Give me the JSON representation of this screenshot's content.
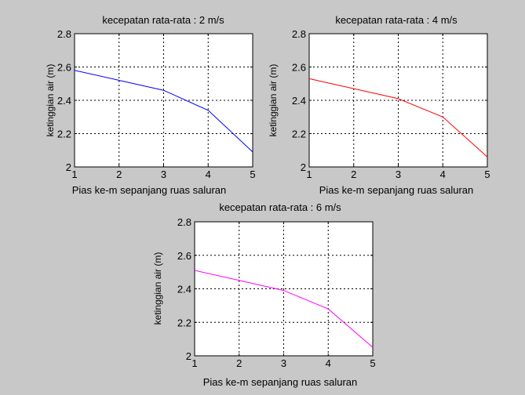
{
  "figure": {
    "background": "#c8c8c8"
  },
  "chart_data": [
    {
      "type": "line",
      "title": "kecepatan rata-rata : 2 m/s",
      "xlabel": "Pias ke-m sepanjang ruas saluran",
      "ylabel": "ketinggian air (m)",
      "xlim": [
        1,
        5
      ],
      "ylim": [
        2,
        2.8
      ],
      "xticks": [
        "1",
        "2",
        "3",
        "4",
        "5"
      ],
      "yticks": [
        "2",
        "2.2",
        "2.4",
        "2.6",
        "2.8"
      ],
      "grid": true,
      "x": [
        1,
        2,
        3,
        4,
        5
      ],
      "series": [
        {
          "color": "#0000ff",
          "values": [
            2.58,
            2.52,
            2.46,
            2.34,
            2.09
          ]
        }
      ]
    },
    {
      "type": "line",
      "title": "kecepatan rata-rata : 4 m/s",
      "xlabel": "Pias ke-m sepanjang ruas saluran",
      "ylabel": "ketinggian air (m)",
      "xlim": [
        1,
        5
      ],
      "ylim": [
        2,
        2.8
      ],
      "xticks": [
        "1",
        "2",
        "3",
        "4",
        "5"
      ],
      "yticks": [
        "2",
        "2.2",
        "2.4",
        "2.6",
        "2.8"
      ],
      "grid": true,
      "x": [
        1,
        2,
        3,
        4,
        5
      ],
      "series": [
        {
          "color": "#ff0000",
          "values": [
            2.53,
            2.47,
            2.41,
            2.3,
            2.06
          ]
        }
      ]
    },
    {
      "type": "line",
      "title": "kecepatan rata-rata : 6 m/s",
      "xlabel": "Pias ke-m sepanjang ruas saluran",
      "ylabel": "ketinggian air (m)",
      "xlim": [
        1,
        5
      ],
      "ylim": [
        2,
        2.8
      ],
      "xticks": [
        "1",
        "2",
        "3",
        "4",
        "5"
      ],
      "yticks": [
        "2",
        "2.2",
        "2.4",
        "2.6",
        "2.8"
      ],
      "grid": true,
      "x": [
        1,
        2,
        3,
        4,
        5
      ],
      "series": [
        {
          "color": "#ff00ff",
          "values": [
            2.51,
            2.45,
            2.39,
            2.28,
            2.05
          ]
        }
      ]
    }
  ]
}
